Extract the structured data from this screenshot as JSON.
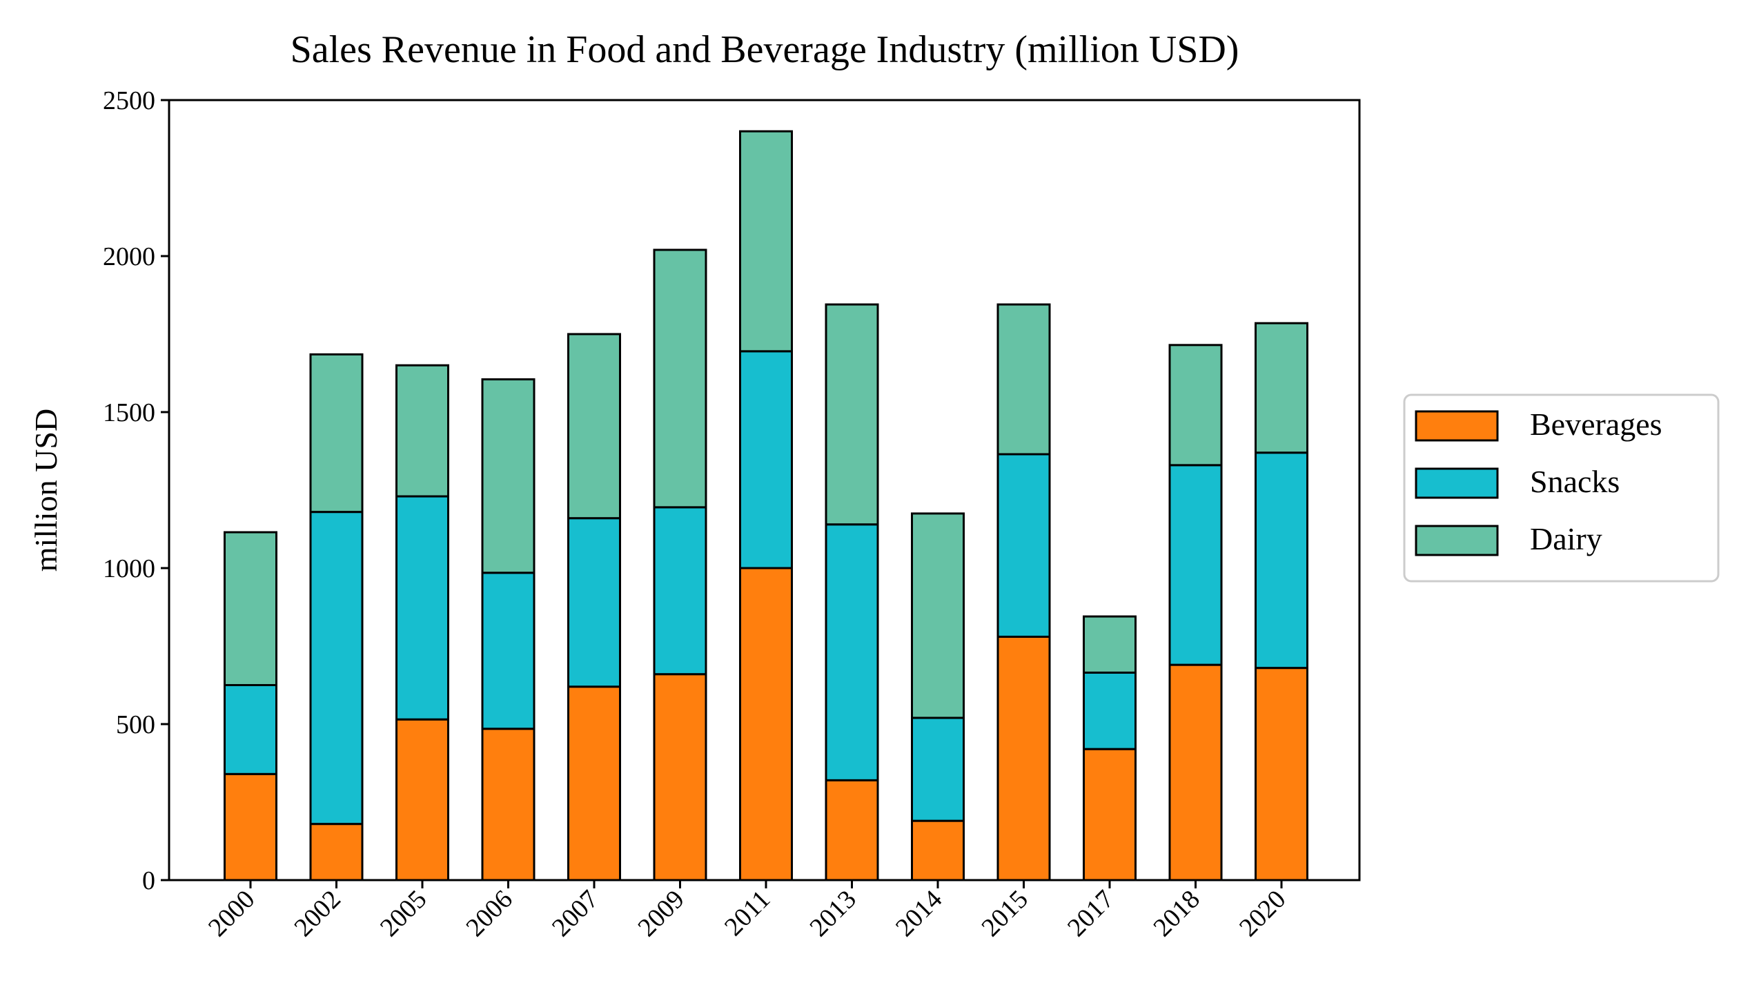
{
  "chart_data": {
    "type": "bar",
    "stacked": true,
    "title": "Sales Revenue in Food and Beverage Industry (million USD)",
    "xlabel": "",
    "ylabel": "million USD",
    "ylim": [
      0,
      2500
    ],
    "yticks": [
      0,
      500,
      1000,
      1500,
      2000,
      2500
    ],
    "grid": false,
    "legend_position": "right",
    "categories": [
      "2000",
      "2002",
      "2005",
      "2006",
      "2007",
      "2009",
      "2011",
      "2013",
      "2014",
      "2015",
      "2017",
      "2018",
      "2020"
    ],
    "series": [
      {
        "name": "Beverages",
        "color": "#ff7f0e",
        "values": [
          340,
          180,
          515,
          485,
          620,
          660,
          1000,
          320,
          190,
          780,
          420,
          690,
          680
        ]
      },
      {
        "name": "Snacks",
        "color": "#17becf",
        "values": [
          285,
          1000,
          715,
          500,
          540,
          535,
          695,
          820,
          330,
          585,
          245,
          640,
          690
        ]
      },
      {
        "name": "Dairy",
        "color": "#66c2a5",
        "values": [
          490,
          505,
          420,
          620,
          590,
          825,
          705,
          705,
          655,
          480,
          180,
          385,
          415
        ]
      }
    ]
  }
}
